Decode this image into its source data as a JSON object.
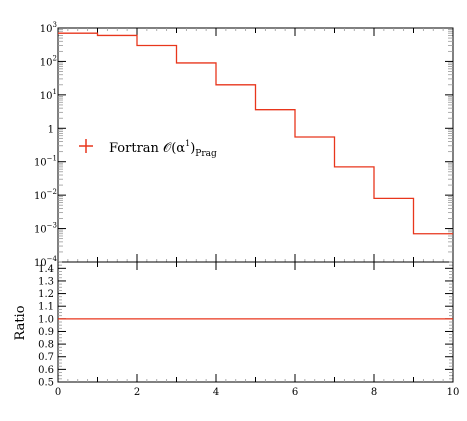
{
  "colors": {
    "series": "#e8361c",
    "axis": "#000000",
    "minor_tick": "#999999"
  },
  "chart_data": [
    {
      "type": "line",
      "panel": "main",
      "drawstyle": "steps-post",
      "yscale": "log",
      "xlim": [
        0,
        10
      ],
      "ylim": [
        0.0001,
        1000
      ],
      "yticks": [
        {
          "base": "10",
          "exp": "−4"
        },
        {
          "base": "10",
          "exp": "−3"
        },
        {
          "base": "10",
          "exp": "−2"
        },
        {
          "base": "10",
          "exp": "−1"
        },
        {
          "base": "1",
          "exp": ""
        },
        {
          "base": "10",
          "exp": "1"
        },
        {
          "base": "10",
          "exp": "2"
        },
        {
          "base": "10",
          "exp": "3"
        }
      ],
      "bin_edges": [
        0,
        1,
        2,
        3,
        4,
        5,
        6,
        7,
        8,
        9,
        10
      ],
      "series": [
        {
          "name": "Fortran 𝒪(α¹)Prag",
          "values": [
            700,
            600,
            300,
            90,
            20,
            3.6,
            0.55,
            0.07,
            0.008,
            0.0007
          ]
        }
      ],
      "legend": {
        "marker": "+",
        "text_main": "Fortran 𝒪(α",
        "text_sup": "1",
        "text_close": ")",
        "text_sub": "Prag",
        "placement": "center-left"
      },
      "xlabel": "",
      "ylabel": ""
    },
    {
      "type": "line",
      "panel": "ratio",
      "xlim": [
        0,
        10
      ],
      "ylim": [
        0.5,
        1.45
      ],
      "ylabel": "Ratio",
      "xticks": [
        "0",
        "2",
        "4",
        "6",
        "8",
        "10"
      ],
      "yticks": [
        "0.5",
        "0.6",
        "0.7",
        "0.8",
        "0.9",
        "1.0",
        "1.1",
        "1.2",
        "1.3",
        "1.4"
      ],
      "series": [
        {
          "name": "",
          "x": [
            0,
            10
          ],
          "values": [
            1.0,
            1.0
          ]
        }
      ]
    }
  ]
}
